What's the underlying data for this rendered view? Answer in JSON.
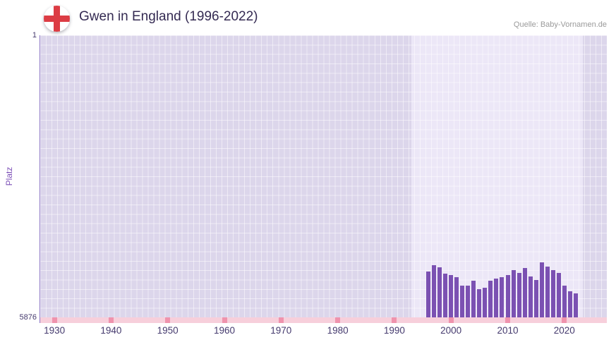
{
  "header": {
    "title": "Gwen in England (1996-2022)",
    "source": "Quelle: Baby-Vornamen.de",
    "flag_icon": "england-flag-icon"
  },
  "chart_data": {
    "type": "bar",
    "title": "Gwen in England (1996-2022)",
    "xlabel": "",
    "ylabel": "Platz",
    "y_axis_inverted": true,
    "ylim": [
      1,
      5876
    ],
    "y_ticks": [
      "1",
      "5876"
    ],
    "x_range": [
      1927.5,
      2027.5
    ],
    "x_ticks": [
      "1930",
      "1940",
      "1950",
      "1960",
      "1970",
      "1980",
      "1990",
      "2000",
      "2010",
      "2020"
    ],
    "highlight_range": [
      1993,
      2023.3
    ],
    "grid": true,
    "legend_position": "none",
    "years": [
      1996,
      1997,
      1998,
      1999,
      2000,
      2001,
      2002,
      2003,
      2004,
      2005,
      2006,
      2007,
      2008,
      2009,
      2010,
      2011,
      2012,
      2013,
      2014,
      2015,
      2016,
      2017,
      2018,
      2019,
      2020,
      2021,
      2022
    ],
    "values": [
      4920,
      4795,
      4830,
      4960,
      5000,
      5040,
      5210,
      5215,
      5110,
      5290,
      5260,
      5115,
      5070,
      5040,
      4995,
      4890,
      4950,
      4850,
      5025,
      5100,
      4730,
      4820,
      4890,
      4950,
      5215,
      5335,
      5380
    ],
    "colors": {
      "title": "#342a52",
      "source": "#9a9a9a",
      "accent_text": "#453a6e",
      "ylabel": "#7c4fb7",
      "plot_bg": "#dcd6eb",
      "highlight": "#ece7f7",
      "bar": "#7b51b2",
      "strip": "#f7cfdb",
      "strip_mark": "#ef93ad",
      "axis": "#8d76c4",
      "flag_red": "#dc3c44"
    }
  }
}
